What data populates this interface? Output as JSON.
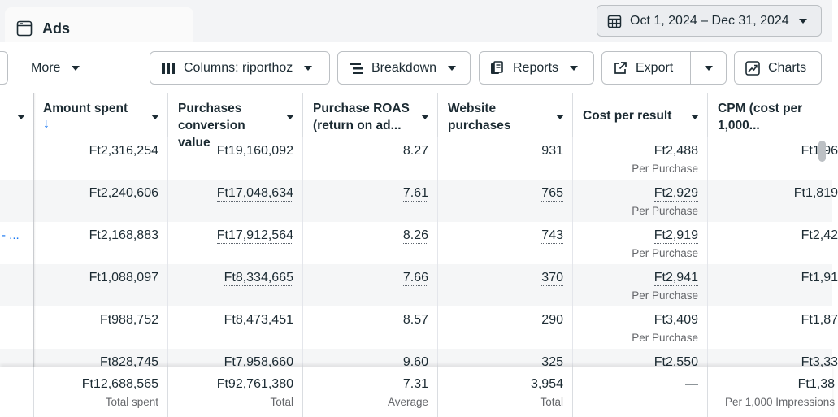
{
  "tab": {
    "title": "Ads"
  },
  "date_range": {
    "label": "Oct 1, 2024 – Dec 31, 2024"
  },
  "toolbar": {
    "more": "More",
    "columns": "Columns: riporthoz",
    "breakdown": "Breakdown",
    "reports": "Reports",
    "export": "Export",
    "charts": "Charts"
  },
  "table": {
    "headers": [
      {
        "label": "Amount spent",
        "sorted": true,
        "sort_glyph": "↓"
      },
      {
        "label": "Purchases conversion value"
      },
      {
        "label": "Purchase ROAS (return on ad..."
      },
      {
        "label": "Website purchases"
      },
      {
        "label": "Cost per result"
      },
      {
        "label": "CPM (cost per 1,000..."
      }
    ],
    "rows": [
      {
        "amount": "Ft2,316,254",
        "conv": "Ft19,160,092",
        "roas": "8.27",
        "purchases": "931",
        "cpr": "Ft2,488",
        "cpr_sub": "Per Purchase",
        "cpm": "Ft1,96",
        "dotted": false
      },
      {
        "amount": "Ft2,240,606",
        "conv": "Ft17,048,634",
        "roas": "7.61",
        "purchases": "765",
        "cpr": "Ft2,929",
        "cpr_sub": "Per Purchase",
        "cpm": "Ft1,819",
        "dotted": true
      },
      {
        "amount": "Ft2,168,883",
        "conv": "Ft17,912,564",
        "roas": "8.26",
        "purchases": "743",
        "cpr": "Ft2,919",
        "cpr_sub": "Per Purchase",
        "cpm": "Ft2,42",
        "dotted": true,
        "link_text": "- ..."
      },
      {
        "amount": "Ft1,088,097",
        "conv": "Ft8,334,665",
        "roas": "7.66",
        "purchases": "370",
        "cpr": "Ft2,941",
        "cpr_sub": "Per Purchase",
        "cpm": "Ft1,91",
        "dotted": true
      },
      {
        "amount": "Ft988,752",
        "conv": "Ft8,473,451",
        "roas": "8.57",
        "purchases": "290",
        "cpr": "Ft3,409",
        "cpr_sub": "Per Purchase",
        "cpm": "Ft1,87",
        "dotted": false
      },
      {
        "amount": "Ft828,745",
        "conv": "Ft7,958,660",
        "roas": "9.60",
        "purchases": "325",
        "cpr": "Ft2,550",
        "cpr_sub": "",
        "cpm": "Ft3,33",
        "dotted": false
      }
    ],
    "totals": {
      "amount": "Ft12,688,565",
      "amount_sub": "Total spent",
      "conv": "Ft92,761,380",
      "conv_sub": "Total",
      "roas": "7.31",
      "roas_sub": "Average",
      "purchases": "3,954",
      "purchases_sub": "Total",
      "cpr": "—",
      "cpr_sub": "",
      "cpm": "Ft1,38",
      "cpm_sub": "Per 1,000 Impressions"
    }
  }
}
